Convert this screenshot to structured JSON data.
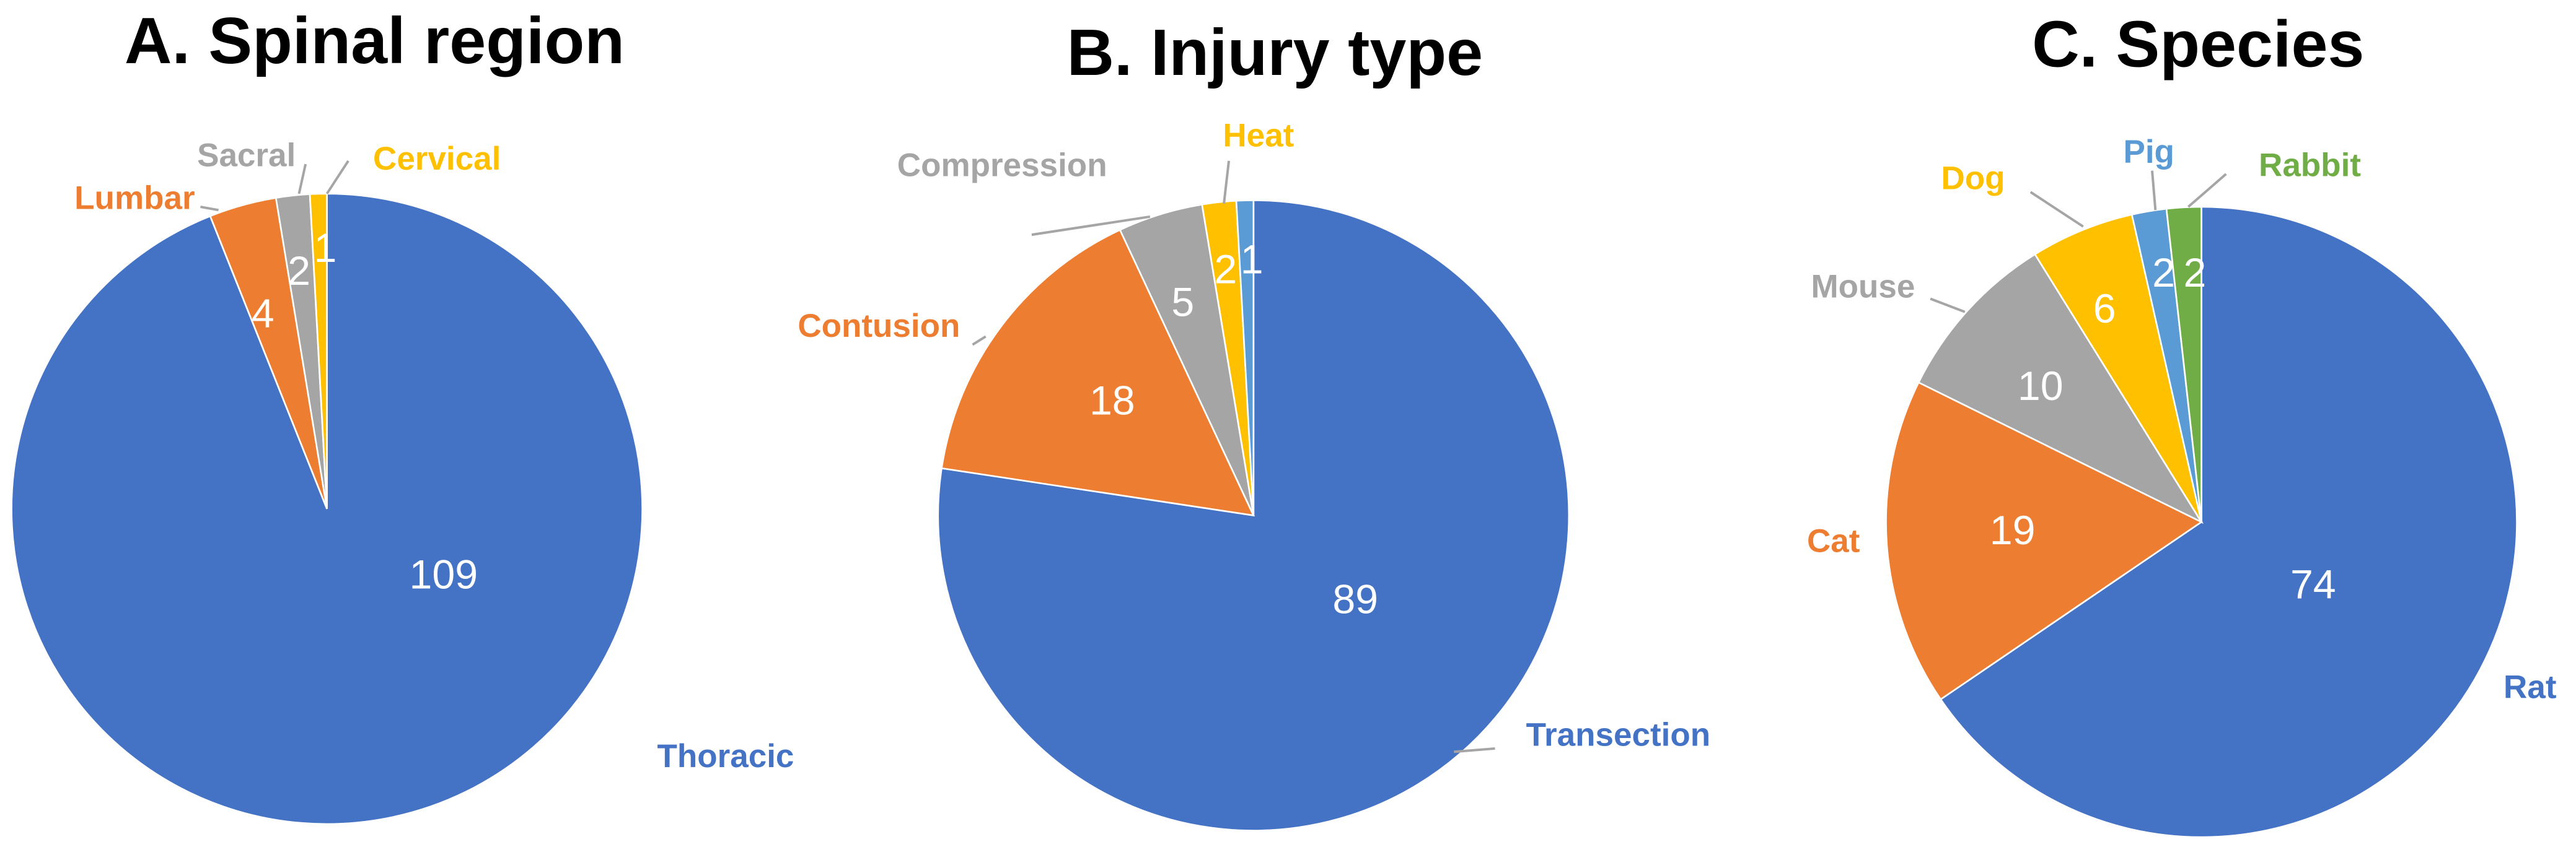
{
  "chart_data": [
    {
      "type": "pie",
      "title": "A. Spinal region",
      "categories": [
        "Thoracic",
        "Lumbar",
        "Sacral",
        "Cervical"
      ],
      "values": [
        109,
        4,
        2,
        1
      ],
      "colors": [
        "#4472c4",
        "#ed7d31",
        "#a5a5a5",
        "#ffc000"
      ]
    },
    {
      "type": "pie",
      "title": "B. Injury type",
      "categories": [
        "Transection",
        "Contusion",
        "Compression",
        "Heat",
        null
      ],
      "values": [
        89,
        18,
        5,
        2,
        1
      ],
      "colors": [
        "#4472c4",
        "#ed7d31",
        "#a5a5a5",
        "#ffc000",
        "#5b9bd5"
      ]
    },
    {
      "type": "pie",
      "title": "C. Species",
      "categories": [
        "Rat",
        "Cat",
        "Mouse",
        "Dog",
        "Pig",
        "Rabbit"
      ],
      "values": [
        74,
        19,
        10,
        6,
        2,
        2
      ],
      "colors": [
        "#4472c4",
        "#ed7d31",
        "#a5a5a5",
        "#ffc000",
        "#5b9bd5",
        "#70ad47"
      ]
    }
  ]
}
